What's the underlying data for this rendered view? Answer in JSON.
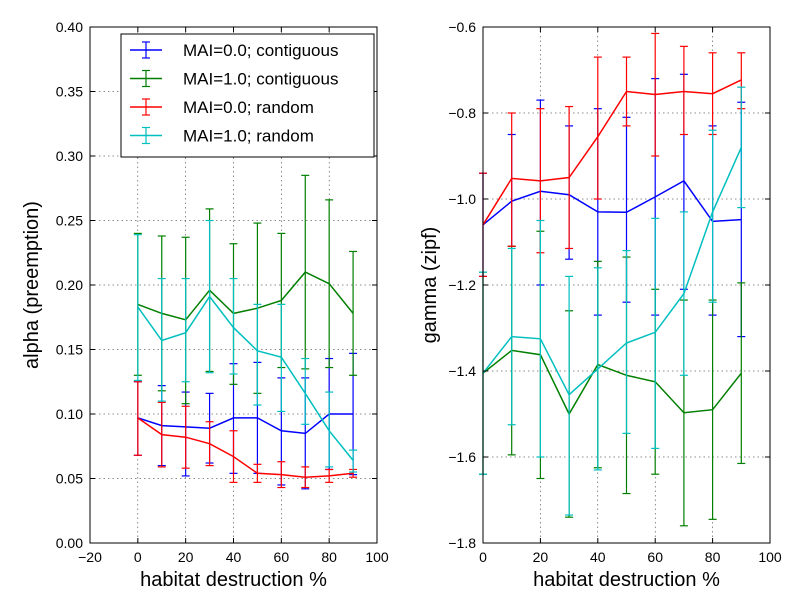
{
  "chart_data": [
    {
      "type": "line",
      "error_bars": true,
      "xlabel": "habitat destruction %",
      "ylabel": "alpha (preemption)",
      "xlim": [
        -20,
        100
      ],
      "ylim": [
        0.0,
        0.4
      ],
      "xticks": [
        -20,
        0,
        20,
        40,
        60,
        80,
        100
      ],
      "xtick_labels": [
        "−20",
        "0",
        "20",
        "40",
        "60",
        "80",
        "100"
      ],
      "yticks": [
        0.0,
        0.05,
        0.1,
        0.15,
        0.2,
        0.25,
        0.3,
        0.35,
        0.4
      ],
      "ytick_labels": [
        "0.00",
        "0.05",
        "0.10",
        "0.15",
        "0.20",
        "0.25",
        "0.30",
        "0.35",
        "0.40"
      ],
      "grid": true,
      "legend_position": "top-right",
      "x": [
        0,
        10,
        20,
        30,
        40,
        50,
        60,
        70,
        80,
        90
      ],
      "series": [
        {
          "name": "MAI=0.0; contiguous",
          "color": "#0000ff",
          "values": [
            0.097,
            0.091,
            0.09,
            0.089,
            0.097,
            0.097,
            0.087,
            0.085,
            0.1,
            0.1
          ],
          "lower": [
            0.068,
            0.06,
            0.052,
            0.062,
            0.054,
            0.054,
            0.045,
            0.042,
            0.057,
            0.053
          ],
          "upper": [
            0.125,
            0.122,
            0.117,
            0.116,
            0.139,
            0.14,
            0.128,
            0.128,
            0.143,
            0.147
          ]
        },
        {
          "name": "MAI=1.0; contiguous",
          "color": "#007f00",
          "values": [
            0.185,
            0.178,
            0.173,
            0.196,
            0.178,
            0.182,
            0.188,
            0.21,
            0.201,
            0.178
          ],
          "lower": [
            0.13,
            0.118,
            0.108,
            0.133,
            0.123,
            0.116,
            0.136,
            0.135,
            0.136,
            0.13
          ],
          "upper": [
            0.24,
            0.238,
            0.237,
            0.259,
            0.232,
            0.248,
            0.24,
            0.285,
            0.266,
            0.226
          ]
        },
        {
          "name": "MAI=0.0; random",
          "color": "#ff0000",
          "values": [
            0.097,
            0.084,
            0.082,
            0.077,
            0.067,
            0.054,
            0.053,
            0.051,
            0.052,
            0.054
          ],
          "lower": [
            0.068,
            0.059,
            0.058,
            0.06,
            0.047,
            0.047,
            0.043,
            0.043,
            0.047,
            0.051
          ],
          "upper": [
            0.125,
            0.109,
            0.106,
            0.094,
            0.087,
            0.061,
            0.063,
            0.059,
            0.057,
            0.057
          ]
        },
        {
          "name": "MAI=1.0; random",
          "color": "#00bfbf",
          "values": [
            0.183,
            0.157,
            0.163,
            0.191,
            0.167,
            0.149,
            0.144,
            0.116,
            0.087,
            0.064
          ],
          "lower": [
            0.126,
            0.11,
            0.125,
            0.132,
            0.131,
            0.107,
            0.102,
            0.092,
            0.059,
            0.055
          ],
          "upper": [
            0.239,
            0.205,
            0.205,
            0.25,
            0.205,
            0.185,
            0.185,
            0.143,
            0.117,
            0.072
          ]
        }
      ]
    },
    {
      "type": "line",
      "error_bars": true,
      "xlabel": "habitat destruction %",
      "ylabel": "gamma (zipf)",
      "xlim": [
        0,
        100
      ],
      "ylim": [
        -1.8,
        -0.6
      ],
      "xticks": [
        0,
        20,
        40,
        60,
        80,
        100
      ],
      "xtick_labels": [
        "0",
        "20",
        "40",
        "60",
        "80",
        "100"
      ],
      "yticks": [
        -1.8,
        -1.6,
        -1.4,
        -1.2,
        -1.0,
        -0.8,
        -0.6
      ],
      "ytick_labels": [
        "−1.8",
        "−1.6",
        "−1.4",
        "−1.2",
        "−1.0",
        "−0.8",
        "−0.6"
      ],
      "grid": true,
      "x": [
        0,
        10,
        20,
        30,
        40,
        50,
        60,
        70,
        80,
        90
      ],
      "series": [
        {
          "name": "MAI=0.0; contiguous",
          "color": "#0000ff",
          "values": [
            -1.06,
            -1.005,
            -0.982,
            -0.99,
            -1.03,
            -1.031,
            -0.995,
            -0.958,
            -1.052,
            -1.048
          ],
          "lower": [
            -1.18,
            -1.11,
            -1.2,
            -1.14,
            -1.27,
            -1.24,
            -1.27,
            -1.21,
            -1.27,
            -1.32
          ],
          "upper": [
            -0.94,
            -0.85,
            -0.77,
            -0.83,
            -0.79,
            -0.81,
            -0.72,
            -0.71,
            -0.83,
            -0.775
          ]
        },
        {
          "name": "MAI=1.0; contiguous",
          "color": "#007f00",
          "values": [
            -1.405,
            -1.352,
            -1.362,
            -1.5,
            -1.385,
            -1.41,
            -1.425,
            -1.497,
            -1.49,
            -1.405
          ],
          "lower": [
            -1.64,
            -1.595,
            -1.65,
            -1.74,
            -1.625,
            -1.685,
            -1.64,
            -1.76,
            -1.745,
            -1.615
          ],
          "upper": [
            -1.17,
            -1.11,
            -1.075,
            -1.26,
            -1.145,
            -1.135,
            -1.21,
            -1.235,
            -1.235,
            -1.195
          ]
        },
        {
          "name": "MAI=0.0; random",
          "color": "#ff0000",
          "values": [
            -1.06,
            -0.952,
            -0.958,
            -0.95,
            -0.855,
            -0.75,
            -0.757,
            -0.75,
            -0.755,
            -0.723
          ],
          "lower": [
            -1.18,
            -1.11,
            -1.125,
            -1.115,
            -1.0,
            -0.83,
            -0.9,
            -0.85,
            -0.85,
            -0.79
          ],
          "upper": [
            -0.94,
            -0.8,
            -0.79,
            -0.785,
            -0.67,
            -0.67,
            -0.615,
            -0.645,
            -0.66,
            -0.66
          ]
        },
        {
          "name": "MAI=1.0; random",
          "color": "#00bfbf",
          "values": [
            -1.405,
            -1.32,
            -1.325,
            -1.455,
            -1.395,
            -1.335,
            -1.31,
            -1.22,
            -1.03,
            -0.88
          ],
          "lower": [
            -1.64,
            -1.525,
            -1.6,
            -1.735,
            -1.63,
            -1.545,
            -1.58,
            -1.41,
            -1.24,
            -1.02
          ],
          "upper": [
            -1.17,
            -1.115,
            -1.05,
            -1.18,
            -1.16,
            -1.12,
            -1.045,
            -1.03,
            -0.84,
            -0.74
          ]
        }
      ]
    }
  ]
}
